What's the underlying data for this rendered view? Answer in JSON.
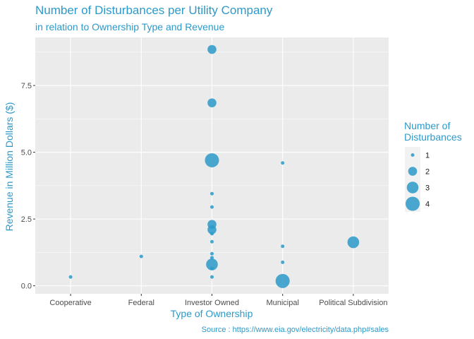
{
  "chart_data": {
    "type": "scatter",
    "title": "Number of Disturbances per Utility Company",
    "subtitle": "in relation to Ownership Type and Revenue",
    "xlabel": "Type of Ownership",
    "ylabel": "Revenue in Million Dollars ($)",
    "caption": "Source : https://www.eia.gov/electricity/data.php#sales",
    "categories": [
      "Cooperative",
      "Federal",
      "Investor Owned",
      "Municipal",
      "Political Subdivision"
    ],
    "ylim": [
      -0.3,
      9.3
    ],
    "yticks": [
      0.0,
      2.5,
      5.0,
      7.5
    ],
    "ytick_labels": [
      "0.0",
      "2.5",
      "5.0",
      "7.5"
    ],
    "grid": true,
    "color": "#2c9ac9",
    "points": [
      {
        "category": "Cooperative",
        "y": 0.33,
        "size": 1
      },
      {
        "category": "Federal",
        "y": 1.1,
        "size": 1
      },
      {
        "category": "Investor Owned",
        "y": 8.85,
        "size": 2
      },
      {
        "category": "Investor Owned",
        "y": 6.85,
        "size": 2
      },
      {
        "category": "Investor Owned",
        "y": 4.7,
        "size": 4
      },
      {
        "category": "Investor Owned",
        "y": 3.45,
        "size": 1
      },
      {
        "category": "Investor Owned",
        "y": 2.95,
        "size": 1
      },
      {
        "category": "Investor Owned",
        "y": 2.3,
        "size": 2
      },
      {
        "category": "Investor Owned",
        "y": 2.1,
        "size": 2
      },
      {
        "category": "Investor Owned",
        "y": 1.95,
        "size": 1
      },
      {
        "category": "Investor Owned",
        "y": 1.65,
        "size": 1
      },
      {
        "category": "Investor Owned",
        "y": 1.2,
        "size": 1
      },
      {
        "category": "Investor Owned",
        "y": 1.05,
        "size": 1
      },
      {
        "category": "Investor Owned",
        "y": 0.8,
        "size": 3
      },
      {
        "category": "Investor Owned",
        "y": 0.65,
        "size": 1
      },
      {
        "category": "Investor Owned",
        "y": 0.33,
        "size": 1
      },
      {
        "category": "Municipal",
        "y": 4.6,
        "size": 1
      },
      {
        "category": "Municipal",
        "y": 1.48,
        "size": 1
      },
      {
        "category": "Municipal",
        "y": 0.88,
        "size": 1
      },
      {
        "category": "Municipal",
        "y": 0.18,
        "size": 4
      },
      {
        "category": "Political Subdivision",
        "y": 1.63,
        "size": 3
      }
    ],
    "legend": {
      "title_lines": [
        "Number of",
        "Disturbances"
      ],
      "entries": [
        {
          "label": "1",
          "size": 1
        },
        {
          "label": "2",
          "size": 2
        },
        {
          "label": "3",
          "size": 3
        },
        {
          "label": "4",
          "size": 4
        }
      ],
      "position": "right"
    }
  }
}
